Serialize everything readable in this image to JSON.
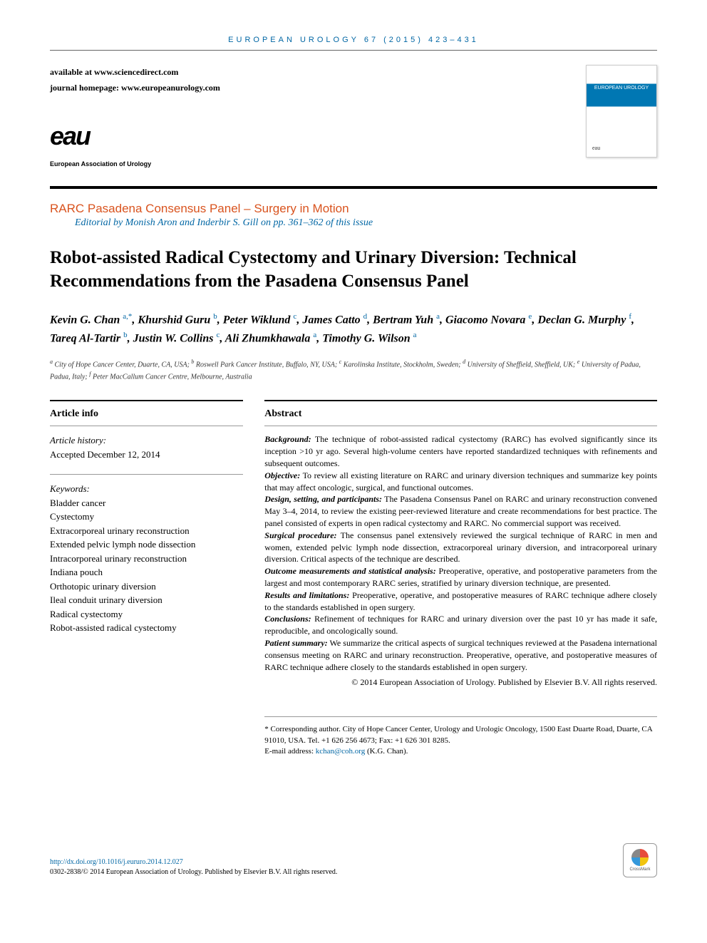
{
  "journal_header": "EUROPEAN UROLOGY 67 (2015) 423–431",
  "availability": {
    "line1_prefix": "available at ",
    "line1_link": "www.sciencedirect.com",
    "line2_prefix": "journal homepage: ",
    "line2_link": "www.europeanurology.com"
  },
  "logo": {
    "text": "eau",
    "subtitle": "European Association of Urology"
  },
  "cover_label_top": "EUROPEAN UROLOGY",
  "section_header": "RARC Pasadena Consensus Panel – Surgery in Motion",
  "editorial_note": "Editorial by Monish Aron and Inderbir S. Gill on pp. 361–362 of this issue",
  "title": "Robot-assisted Radical Cystectomy and Urinary Diversion: Technical Recommendations from the Pasadena Consensus Panel",
  "authors_html": "Kevin G. Chan <sup>a,*</sup>, Khurshid Guru <sup>b</sup>, Peter Wiklund <sup>c</sup>, James Catto <sup>d</sup>, Bertram Yuh <sup>a</sup>, Giacomo Novara <sup>e</sup>, Declan G. Murphy <sup>f</sup>, Tareq Al-Tartir <sup>b</sup>, Justin W. Collins <sup>c</sup>, Ali Zhumkhawala <sup>a</sup>, Timothy G. Wilson <sup>a</sup>",
  "affiliations_html": "<sup>a</sup> City of Hope Cancer Center, Duarte, CA, USA; <sup>b</sup> Roswell Park Cancer Institute, Buffalo, NY, USA; <sup>c</sup> Karolinska Institute, Stockholm, Sweden; <sup>d</sup> University of Sheffield, Sheffield, UK; <sup>e</sup> University of Padua, Padua, Italy; <sup>f</sup> Peter MacCallum Cancer Centre, Melbourne, Australia",
  "info": {
    "heading": "Article info",
    "history_label": "Article history:",
    "history_value": "Accepted December 12, 2014",
    "keywords_label": "Keywords:",
    "keywords": [
      "Bladder cancer",
      "Cystectomy",
      "Extracorporeal urinary reconstruction",
      "Extended pelvic lymph node dissection",
      "Intracorporeal urinary reconstruction",
      "Indiana pouch",
      "Orthotopic urinary diversion",
      "Ileal conduit urinary diversion",
      "Radical cystectomy",
      "Robot-assisted radical cystectomy"
    ]
  },
  "abstract": {
    "heading": "Abstract",
    "sections": [
      {
        "label": "Background:",
        "text": " The technique of robot-assisted radical cystectomy (RARC) has evolved significantly since its inception >10 yr ago. Several high-volume centers have reported standardized techniques with refinements and subsequent outcomes."
      },
      {
        "label": "Objective:",
        "text": " To review all existing literature on RARC and urinary diversion techniques and summarize key points that may affect oncologic, surgical, and functional outcomes."
      },
      {
        "label": "Design, setting, and participants:",
        "text": " The Pasadena Consensus Panel on RARC and urinary reconstruction convened May 3–4, 2014, to review the existing peer-reviewed literature and create recommendations for best practice. The panel consisted of experts in open radical cystectomy and RARC. No commercial support was received."
      },
      {
        "label": "Surgical procedure:",
        "text": " The consensus panel extensively reviewed the surgical technique of RARC in men and women, extended pelvic lymph node dissection, extracorporeal urinary diversion, and intracorporeal urinary diversion. Critical aspects of the technique are described."
      },
      {
        "label": "Outcome measurements and statistical analysis:",
        "text": " Preoperative, operative, and postoperative parameters from the largest and most contemporary RARC series, stratified by urinary diversion technique, are presented."
      },
      {
        "label": "Results and limitations:",
        "text": " Preoperative, operative, and postoperative measures of RARC technique adhere closely to the standards established in open surgery."
      },
      {
        "label": "Conclusions:",
        "text": " Refinement of techniques for RARC and urinary diversion over the past 10 yr has made it safe, reproducible, and oncologically sound."
      },
      {
        "label": "Patient summary:",
        "text": " We summarize the critical aspects of surgical techniques reviewed at the Pasadena international consensus meeting on RARC and urinary reconstruction. Preoperative, operative, and postoperative measures of RARC technique adhere closely to the standards established in open surgery."
      }
    ],
    "copyright": "© 2014 European Association of Urology. Published by Elsevier B.V. All rights reserved."
  },
  "corresponding": {
    "text": "* Corresponding author. City of Hope Cancer Center, Urology and Urologic Oncology, 1500 East Duarte Road, Duarte, CA 91010, USA. Tel. +1 626 256 4673; Fax: +1 626 301 8285.",
    "email_label": "E-mail address: ",
    "email": "kchan@coh.org",
    "email_suffix": " (K.G. Chan)."
  },
  "footer": {
    "doi": "http://dx.doi.org/10.1016/j.eururo.2014.12.027",
    "issn_line": "0302-2838/© 2014 European Association of Urology. Published by Elsevier B.V. All rights reserved.",
    "crossmark": "CrossMark"
  },
  "colors": {
    "link_blue": "#0066a4",
    "section_orange": "#d9531e",
    "text_black": "#000000",
    "divider_gray": "#999999"
  }
}
